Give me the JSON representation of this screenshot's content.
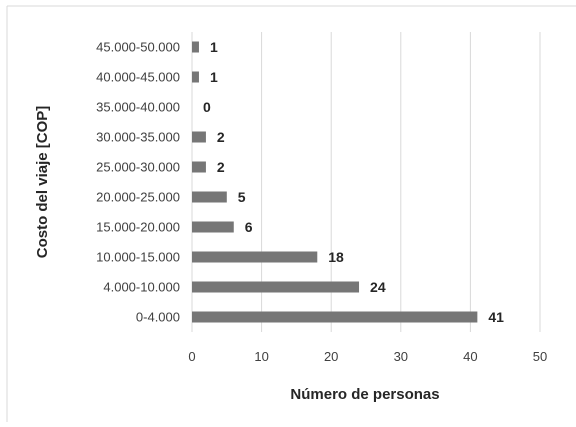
{
  "chart_data": {
    "type": "bar",
    "orientation": "horizontal",
    "categories": [
      "0-4.000",
      "4.000-10.000",
      "10.000-15.000",
      "15.000-20.000",
      "20.000-25.000",
      "25.000-30.000",
      "30.000-35.000",
      "35.000-40.000",
      "40.000-45.000",
      "45.000-50.000"
    ],
    "values": [
      41,
      24,
      18,
      6,
      5,
      2,
      2,
      0,
      1,
      1
    ],
    "data_labels": [
      "41",
      "24",
      "18",
      "6",
      "5",
      "2",
      "2",
      "0",
      "1",
      "1"
    ],
    "xlabel": "Número de personas",
    "ylabel": "Costo del viaje [COP]",
    "xlim": [
      0,
      50
    ],
    "xticks": [
      "0",
      "10",
      "20",
      "30",
      "40",
      "50"
    ],
    "grid": "vertical",
    "legend": "none",
    "bar_color": "#767676"
  }
}
